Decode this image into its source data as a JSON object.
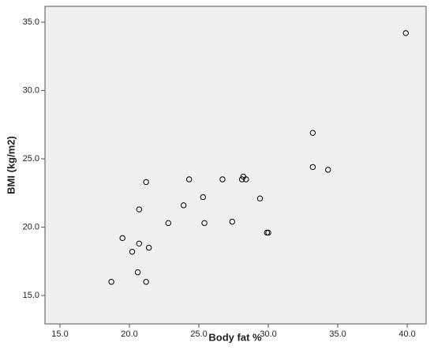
{
  "chart_data": {
    "type": "scatter",
    "x_label": "Body fat %",
    "y_label": "BMI (kg/m2)",
    "x": [
      39.9,
      33.2,
      33.2,
      34.3,
      29.4,
      28.2,
      28.1,
      28.4,
      26.7,
      24.3,
      21.2,
      25.3,
      23.9,
      20.7,
      22.8,
      25.4,
      27.4,
      29.9,
      30.0,
      19.5,
      20.7,
      21.4,
      20.2,
      20.6,
      18.7,
      21.2
    ],
    "y": [
      34.2,
      26.9,
      24.4,
      24.2,
      22.1,
      23.7,
      23.5,
      23.5,
      23.5,
      23.5,
      23.3,
      22.2,
      21.6,
      21.3,
      20.3,
      20.3,
      20.4,
      19.6,
      19.6,
      19.2,
      18.8,
      18.5,
      18.2,
      16.7,
      16.0,
      16.0
    ],
    "color": "#000000",
    "xlim": [
      13.92,
      41.36
    ],
    "ylim": [
      12.92,
      36.16
    ],
    "xticks": [
      {
        "value": 15,
        "label": "15.0"
      },
      {
        "value": 20,
        "label": "20.0"
      },
      {
        "value": 25,
        "label": "25.0"
      },
      {
        "value": 30,
        "label": "30.0"
      },
      {
        "value": 35,
        "label": "35.0"
      },
      {
        "value": 40,
        "label": "40.0"
      }
    ],
    "yticks": [
      {
        "value": 15,
        "label": "15.0"
      },
      {
        "value": 20,
        "label": "20.0"
      },
      {
        "value": 25,
        "label": "25.0"
      },
      {
        "value": 30,
        "label": "30.0"
      },
      {
        "value": 35,
        "label": "35.0"
      }
    ],
    "grid": false
  }
}
